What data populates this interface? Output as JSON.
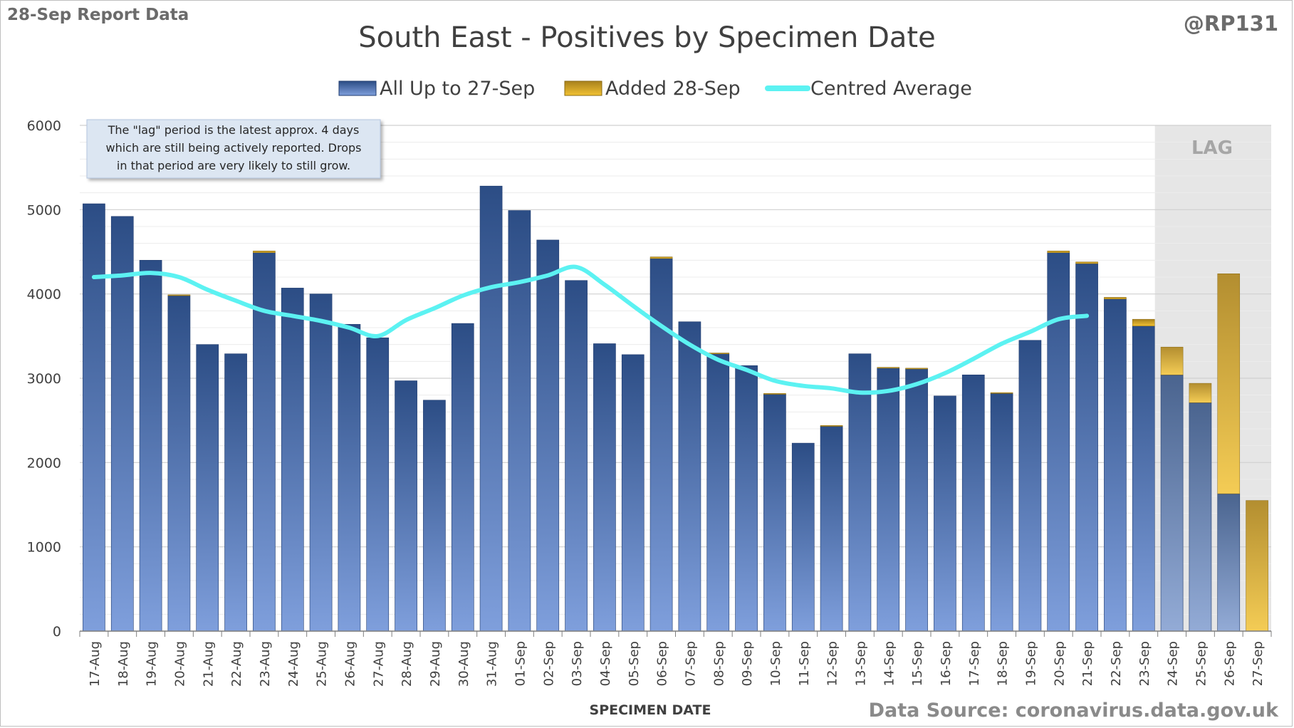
{
  "header": {
    "report_label": "28-Sep Report Data",
    "author": "@RP131",
    "source": "Data Source: coronavirus.data.gov.uk"
  },
  "annotation": {
    "lines": [
      "The \"lag\" period is the latest approx. 4 days",
      "which are still being actively reported.  Drops",
      "in that period are very likely to still grow."
    ]
  },
  "lag_label": "LAG",
  "colors": {
    "bar_blue_top": "#2c4d85",
    "bar_blue_bottom": "#7f9fdc",
    "bar_gold_top": "#a8811c",
    "bar_gold_bottom": "#f2c233",
    "line_cyan": "#5cf2f2",
    "lag_shade": "#e6e6e6",
    "note_bg": "#dce6f2"
  },
  "chart_data": {
    "type": "bar",
    "title": "South East - Positives by Specimen Date",
    "xlabel": "SPECIMEN DATE",
    "ylabel": "",
    "ylim": [
      0,
      6000
    ],
    "yticks": [
      0,
      1000,
      2000,
      3000,
      4000,
      5000,
      6000
    ],
    "grid": true,
    "legend_position": "top",
    "stacked": true,
    "categories": [
      "17-Aug",
      "18-Aug",
      "19-Aug",
      "20-Aug",
      "21-Aug",
      "22-Aug",
      "23-Aug",
      "24-Aug",
      "25-Aug",
      "26-Aug",
      "27-Aug",
      "28-Aug",
      "29-Aug",
      "30-Aug",
      "31-Aug",
      "01-Sep",
      "02-Sep",
      "03-Sep",
      "04-Sep",
      "05-Sep",
      "06-Sep",
      "07-Sep",
      "08-Sep",
      "09-Sep",
      "10-Sep",
      "11-Sep",
      "12-Sep",
      "13-Sep",
      "14-Sep",
      "15-Sep",
      "16-Sep",
      "17-Sep",
      "18-Sep",
      "19-Sep",
      "20-Sep",
      "21-Sep",
      "22-Sep",
      "23-Sep",
      "24-Sep",
      "25-Sep",
      "26-Sep",
      "27-Sep"
    ],
    "lag_start_category": "24-Sep",
    "series": [
      {
        "name": "All Up to 27-Sep",
        "kind": "bar",
        "values": [
          5070,
          4920,
          4400,
          3980,
          3400,
          3290,
          4490,
          4070,
          4000,
          3640,
          3480,
          2970,
          2740,
          3650,
          5280,
          4990,
          4640,
          4160,
          3410,
          3280,
          4420,
          3670,
          3290,
          3150,
          2810,
          2230,
          2430,
          3290,
          3120,
          3110,
          2790,
          3040,
          2820,
          3450,
          4490,
          4360,
          3940,
          3620,
          3040,
          2710,
          1630,
          0
        ]
      },
      {
        "name": "Added 28-Sep",
        "kind": "bar",
        "values": [
          0,
          0,
          0,
          10,
          0,
          0,
          20,
          0,
          0,
          0,
          0,
          0,
          0,
          0,
          0,
          0,
          0,
          0,
          0,
          0,
          20,
          0,
          10,
          0,
          10,
          0,
          10,
          0,
          10,
          10,
          0,
          0,
          10,
          0,
          20,
          20,
          20,
          80,
          330,
          230,
          2610,
          1550
        ]
      },
      {
        "name": "Centred Average",
        "kind": "line",
        "values": [
          4200,
          4220,
          4250,
          4200,
          4050,
          3920,
          3800,
          3740,
          3680,
          3600,
          3500,
          3690,
          3830,
          3980,
          4080,
          4140,
          4220,
          4320,
          4110,
          3860,
          3620,
          3400,
          3220,
          3100,
          2970,
          2910,
          2880,
          2830,
          2850,
          2930,
          3060,
          3230,
          3410,
          3550,
          3700,
          3740,
          null,
          null,
          null,
          null,
          null,
          null
        ]
      }
    ]
  }
}
